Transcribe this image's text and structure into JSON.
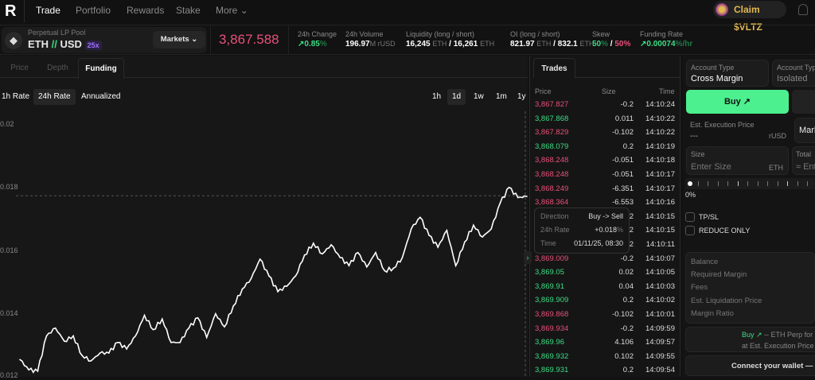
{
  "nav": {
    "logo": "R",
    "items": [
      "Trade",
      "Portfolio",
      "Rewards",
      "Stake",
      "More"
    ],
    "active": "Trade",
    "claim": "Claim $VLTZ"
  },
  "market": {
    "pool_label": "Perpetual LP Pool",
    "pair_base": "ETH",
    "pair_sep": "//",
    "pair_quote": "USD",
    "leverage": "25x",
    "markets_btn": "Markets",
    "price": "3,867.588",
    "stats": {
      "change_label": "24h Change",
      "change_value": "0.85",
      "change_unit": "%",
      "volume_label": "24h Volume",
      "volume_value": "196.97",
      "volume_unit": "M rUSD",
      "liq_label": "Liquidity (long / short)",
      "liq_long": "16,245",
      "liq_short": "16,261",
      "eth": "ETH",
      "oi_label": "OI (long / short)",
      "oi_long": "821.97",
      "oi_short": "832.1",
      "skew_label": "Skew",
      "skew_long": "50",
      "skew_short": "50",
      "funding_label": "Funding Rate",
      "funding_value": "0.00074",
      "funding_unit": "%/hr"
    }
  },
  "chart_tabs": [
    "Price",
    "Depth",
    "Funding"
  ],
  "chart_tab_active": "Funding",
  "rate_buttons": [
    "1h Rate",
    "24h Rate",
    "Annualized"
  ],
  "rate_active": "24h Rate",
  "ranges": [
    "1h",
    "1d",
    "1w",
    "1m",
    "1y"
  ],
  "range_active": "1d",
  "chart_data": {
    "type": "line",
    "title": "",
    "xlabel": "",
    "ylabel": "",
    "ylim": [
      0.012,
      0.02
    ],
    "y_ticks": [
      "0.02",
      "0.018",
      "0.016",
      "0.014",
      "0.012"
    ],
    "grid": false,
    "crosshair_value": 0.0177,
    "series": [
      {
        "values": [
          0.01245,
          0.01212,
          0.01208,
          0.01321,
          0.01346,
          0.01304,
          0.01321,
          0.01258,
          0.01241,
          0.01266,
          0.01266,
          0.013,
          0.01279,
          0.01321,
          0.01387,
          0.01341,
          0.01375,
          0.013,
          0.013,
          0.01346,
          0.01379,
          0.01316,
          0.01392,
          0.0135,
          0.01417,
          0.01471,
          0.01505,
          0.01567,
          0.01513,
          0.01463,
          0.0148,
          0.01513,
          0.0158,
          0.01618,
          0.01584,
          0.01613,
          0.01572,
          0.01546,
          0.01588,
          0.01542,
          0.01588,
          0.0153,
          0.01538,
          0.01572,
          0.01664,
          0.01701,
          0.01643,
          0.01605,
          0.01659,
          0.01546,
          0.01622,
          0.01676,
          0.01638,
          0.01664,
          0.01747,
          0.01797,
          0.01764,
          0.01768
        ]
      }
    ]
  },
  "tooltip": {
    "direction_label": "Direction",
    "direction": "Buy -> Sell",
    "rate_label": "24h Rate",
    "rate": "+0.018",
    "rate_unit": "%",
    "time_label": "Time",
    "time": "01/11/25, 08:30"
  },
  "trades": {
    "tab": "Trades",
    "headers": [
      "Price",
      "Size",
      "Time"
    ],
    "colors": {
      "buy": "#3ddc84",
      "sell": "#e8507a"
    },
    "rows": [
      {
        "price": "3,867.827",
        "size": "-0.2",
        "time": "14:10:24",
        "side": "sell"
      },
      {
        "price": "3,867.868",
        "size": "0.011",
        "time": "14:10:22",
        "side": "buy"
      },
      {
        "price": "3,867.829",
        "size": "-0.102",
        "time": "14:10:22",
        "side": "sell"
      },
      {
        "price": "3,868.079",
        "size": "0.2",
        "time": "14:10:19",
        "side": "buy"
      },
      {
        "price": "3,868.248",
        "size": "-0.051",
        "time": "14:10:18",
        "side": "sell"
      },
      {
        "price": "3,868.248",
        "size": "-0.051",
        "time": "14:10:17",
        "side": "sell"
      },
      {
        "price": "3,868.249",
        "size": "-6.351",
        "time": "14:10:17",
        "side": "sell"
      },
      {
        "price": "3,868.364",
        "size": "-6.553",
        "time": "14:10:16",
        "side": "sell"
      },
      {
        "price": "",
        "size": "2",
        "time": "14:10:15",
        "side": "buy"
      },
      {
        "price": "",
        "size": "2",
        "time": "14:10:15",
        "side": "buy"
      },
      {
        "price": "",
        "size": "2",
        "time": "14:10:11",
        "side": "buy"
      },
      {
        "price": "3,869.009",
        "size": "-0.2",
        "time": "14:10:07",
        "side": "sell"
      },
      {
        "price": "3,869.05",
        "size": "0.02",
        "time": "14:10:05",
        "side": "buy"
      },
      {
        "price": "3,869.91",
        "size": "0.04",
        "time": "14:10:03",
        "side": "buy"
      },
      {
        "price": "3,869.909",
        "size": "0.2",
        "time": "14:10:02",
        "side": "buy"
      },
      {
        "price": "3,869.868",
        "size": "-0.102",
        "time": "14:10:01",
        "side": "sell"
      },
      {
        "price": "3,869.934",
        "size": "-0.2",
        "time": "14:09:59",
        "side": "sell"
      },
      {
        "price": "3,869.96",
        "size": "4.106",
        "time": "14:09:57",
        "side": "buy"
      },
      {
        "price": "3,869.932",
        "size": "0.102",
        "time": "14:09:55",
        "side": "buy"
      },
      {
        "price": "3,869.931",
        "size": "0.2",
        "time": "14:09:54",
        "side": "buy"
      }
    ]
  },
  "order": {
    "acct_label": "Account Type",
    "acct_cross": "Cross Margin",
    "acct_isolated": "Isolated",
    "buy": "Buy",
    "est_label": "Est. Execution Price",
    "est_value": "---",
    "est_unit": "rUSD",
    "market_partial": "Mark",
    "size_label": "Size",
    "size_placeholder": "Enter Size",
    "size_unit": "ETH",
    "total_label": "Total",
    "total_placeholder": "≈ Ent",
    "slider_value": "0%",
    "tpsl": "TP/SL",
    "reduce": "REDUCE ONLY",
    "info": [
      "Balance",
      "Required Margin",
      "Fees",
      "Est. Liquidation Price",
      "Margin Ratio"
    ],
    "summary_buy": "Buy",
    "summary_text": "-- ETH Perp for -",
    "summary_line2": "at Est. Execution Price o",
    "connect": "Connect your wallet — fas"
  }
}
